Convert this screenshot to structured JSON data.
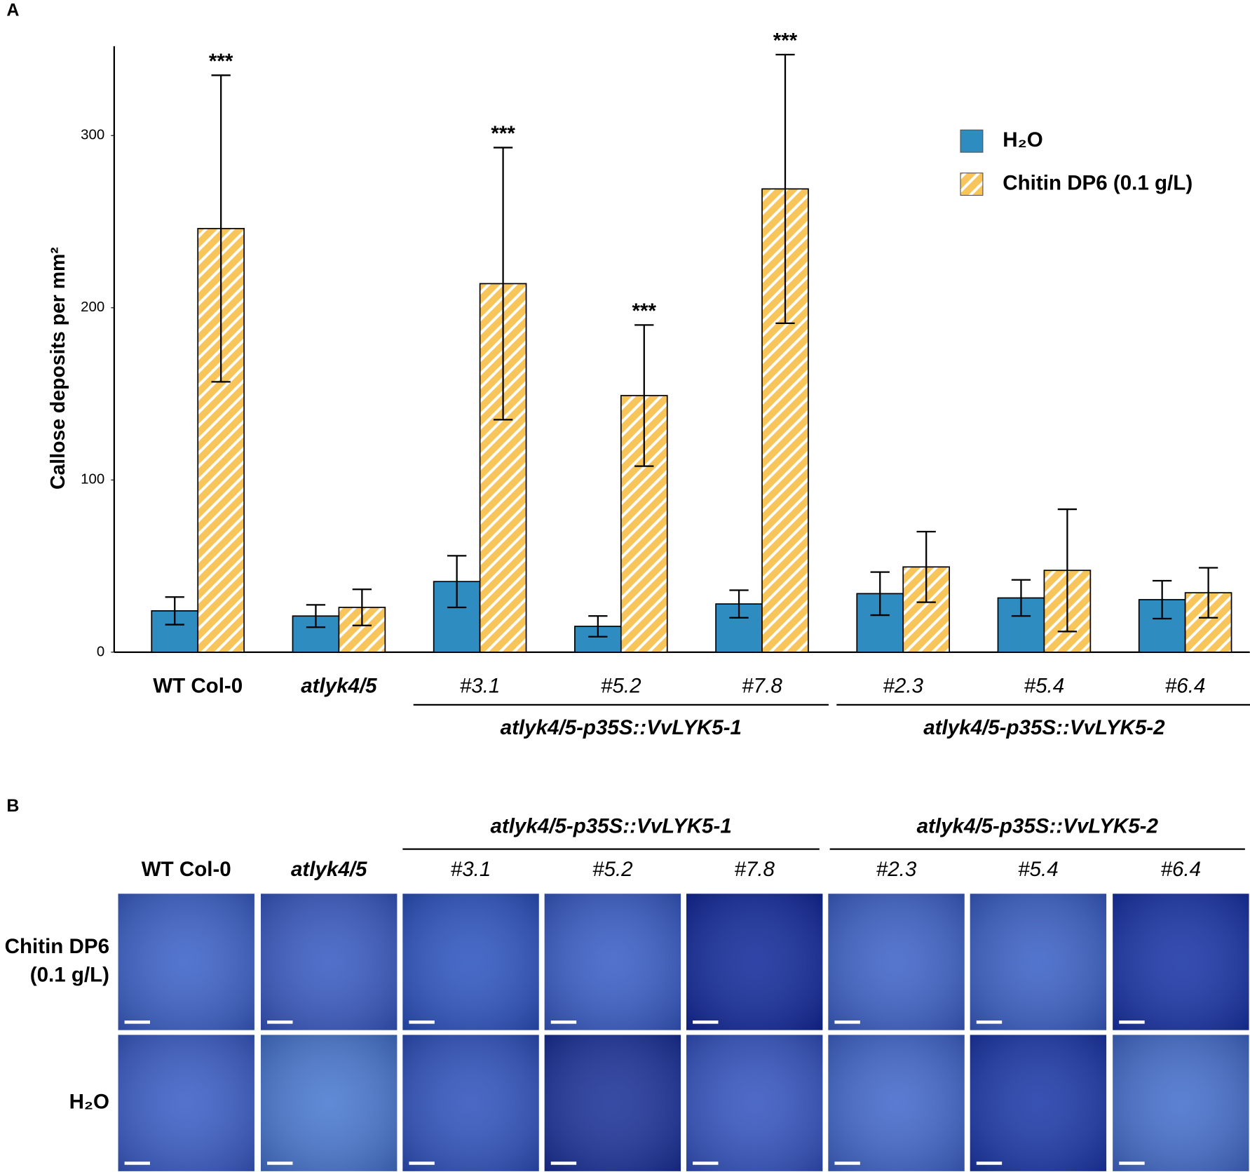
{
  "chart_data": {
    "type": "bar",
    "panel_label": "A",
    "ylabel": "Callose deposits per mm²",
    "categories": [
      "WT Col-0",
      "atlyk4/5",
      "#3.1",
      "#5.2",
      "#7.8",
      "#2.3",
      "#5.4",
      "#6.4"
    ],
    "series": [
      {
        "name": "H₂O",
        "color": "#2f8cc1",
        "values": [
          24,
          21,
          41,
          15,
          28,
          34,
          31.5,
          30.5
        ],
        "errors": [
          8,
          6.5,
          15,
          6,
          8,
          12.5,
          10.5,
          11
        ]
      },
      {
        "name": "Chitin DP6 (0.1 g/L)",
        "color": "#f7c55a",
        "hatch": true,
        "values": [
          246,
          26,
          214,
          149,
          269,
          49.5,
          47.5,
          34.5
        ],
        "errors": [
          89,
          10.5,
          79,
          41,
          78,
          20.5,
          35.5,
          14.5
        ]
      }
    ],
    "annotations": [
      {
        "text": "***",
        "category": "WT Col-0"
      },
      {
        "text": "***",
        "category": "#3.1"
      },
      {
        "text": "***",
        "category": "#5.2"
      },
      {
        "text": "***",
        "category": "#7.8"
      }
    ],
    "groups": [
      {
        "label": "atlyk4/5-p35S::VvLYK5-1",
        "categories": [
          "#3.1",
          "#5.2",
          "#7.8"
        ]
      },
      {
        "label": "atlyk4/5-p35S::VvLYK5-2",
        "categories": [
          "#2.3",
          "#5.4",
          "#6.4"
        ]
      }
    ],
    "ylim": [
      0,
      350
    ],
    "yticks": [
      0,
      100,
      200,
      300
    ],
    "grid": false,
    "legend": "upper right"
  },
  "panel_b": {
    "label": "B",
    "groups": [
      {
        "label": "atlyk4/5-p35S::VvLYK5-1"
      },
      {
        "label": "atlyk4/5-p35S::VvLYK5-2"
      }
    ],
    "columns": [
      "WT Col-0",
      "atlyk4/5",
      "#3.1",
      "#5.2",
      "#7.8",
      "#2.3",
      "#5.4",
      "#6.4"
    ],
    "rows": [
      {
        "lines": [
          "Chitin DP6",
          "(0.1 g/L)"
        ]
      },
      {
        "lines": [
          "H₂O"
        ]
      }
    ]
  }
}
